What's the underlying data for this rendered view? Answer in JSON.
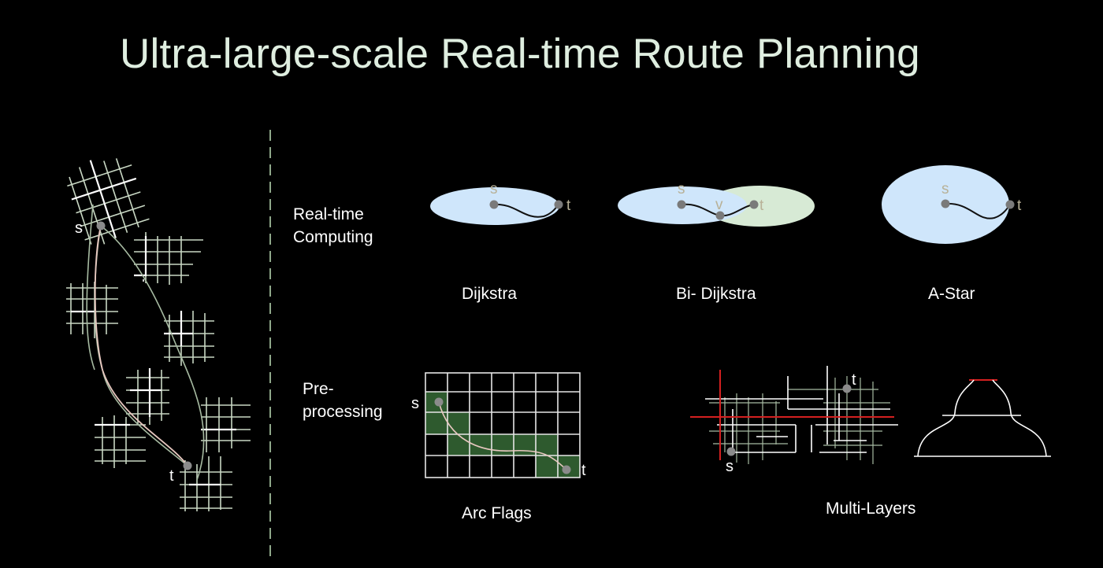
{
  "slide": {
    "title": "Ultra-large-scale Real-time Route Planning",
    "row_labels": {
      "realtime_line1": "Real-time",
      "realtime_line2": "Computing",
      "pre_line1": "Pre-",
      "pre_line2": "processing"
    },
    "captions": {
      "dijkstra": "Dijkstra",
      "bidijkstra": "Bi- Dijkstra",
      "astar": "A-Star",
      "arcflags": "Arc Flags",
      "multilayers": "Multi-Layers"
    },
    "node_labels": {
      "s": "s",
      "t": "t",
      "v": "v"
    },
    "colors": {
      "background": "#000000",
      "title": "#dfeee0",
      "search_area": "#cfe6fb",
      "reverse_search_area": "#d7ead5",
      "grid_green": "#8fa88a",
      "flag_cell": "#2e5a2e",
      "node": "#8b8b8b",
      "node_label": "#b8b197",
      "highlight_red": "#d42020",
      "route": "#e8c8c0"
    }
  }
}
